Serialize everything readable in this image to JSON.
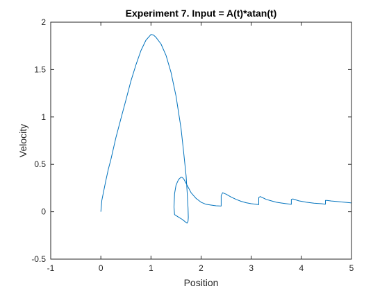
{
  "chart_data": {
    "type": "line",
    "title": "Experiment 7. Input = A(t)*atan(t)",
    "xlabel": "Position",
    "ylabel": "Velocity",
    "xlim": [
      -1,
      5
    ],
    "ylim": [
      -0.5,
      2
    ],
    "xticks": [
      -1,
      0,
      1,
      2,
      3,
      4,
      5
    ],
    "yticks": [
      -0.5,
      0,
      0.5,
      1,
      1.5,
      2
    ],
    "xtick_labels": [
      "-1",
      "0",
      "1",
      "2",
      "3",
      "4",
      "5"
    ],
    "ytick_labels": [
      "-0.5",
      "0",
      "0.5",
      "1",
      "1.5",
      "2"
    ],
    "grid": false,
    "box": true,
    "series": [
      {
        "color": "#0072BD",
        "x": [
          0,
          0.02,
          0.05,
          0.1,
          0.15,
          0.2,
          0.3,
          0.4,
          0.5,
          0.6,
          0.7,
          0.8,
          0.9,
          1.0,
          1.05,
          1.1,
          1.2,
          1.3,
          1.4,
          1.5,
          1.6,
          1.65,
          1.7,
          1.72,
          1.74,
          1.745,
          1.74,
          1.72,
          1.7,
          1.67,
          1.62,
          1.56,
          1.5,
          1.47,
          1.46,
          1.47,
          1.5,
          1.55,
          1.6,
          1.63,
          1.66,
          1.7,
          1.75,
          1.8,
          1.9,
          2.0,
          2.1,
          2.2,
          2.3,
          2.4,
          2.4,
          2.43,
          2.5,
          2.6,
          2.7,
          2.8,
          2.9,
          3.0,
          3.1,
          3.15,
          3.15,
          3.18,
          3.3,
          3.4,
          3.5,
          3.6,
          3.7,
          3.8,
          3.8,
          3.83,
          3.95,
          4.1,
          4.25,
          4.4,
          4.48,
          4.48,
          4.51,
          4.6,
          4.7,
          4.8,
          4.9,
          5.0
        ],
        "y": [
          0,
          0.12,
          0.2,
          0.33,
          0.45,
          0.55,
          0.78,
          0.98,
          1.18,
          1.38,
          1.55,
          1.7,
          1.81,
          1.87,
          1.865,
          1.84,
          1.77,
          1.65,
          1.47,
          1.22,
          0.88,
          0.64,
          0.38,
          0.22,
          0.04,
          -0.06,
          -0.1,
          -0.12,
          -0.115,
          -0.1,
          -0.08,
          -0.06,
          -0.04,
          -0.03,
          0.05,
          0.19,
          0.28,
          0.34,
          0.365,
          0.36,
          0.34,
          0.3,
          0.25,
          0.2,
          0.14,
          0.1,
          0.078,
          0.07,
          0.063,
          0.06,
          0.17,
          0.2,
          0.185,
          0.155,
          0.13,
          0.11,
          0.095,
          0.085,
          0.078,
          0.075,
          0.15,
          0.16,
          0.13,
          0.115,
          0.1,
          0.092,
          0.085,
          0.078,
          0.13,
          0.135,
          0.115,
          0.1,
          0.09,
          0.085,
          0.08,
          0.12,
          0.12,
          0.113,
          0.108,
          0.103,
          0.099,
          0.093
        ]
      }
    ]
  }
}
